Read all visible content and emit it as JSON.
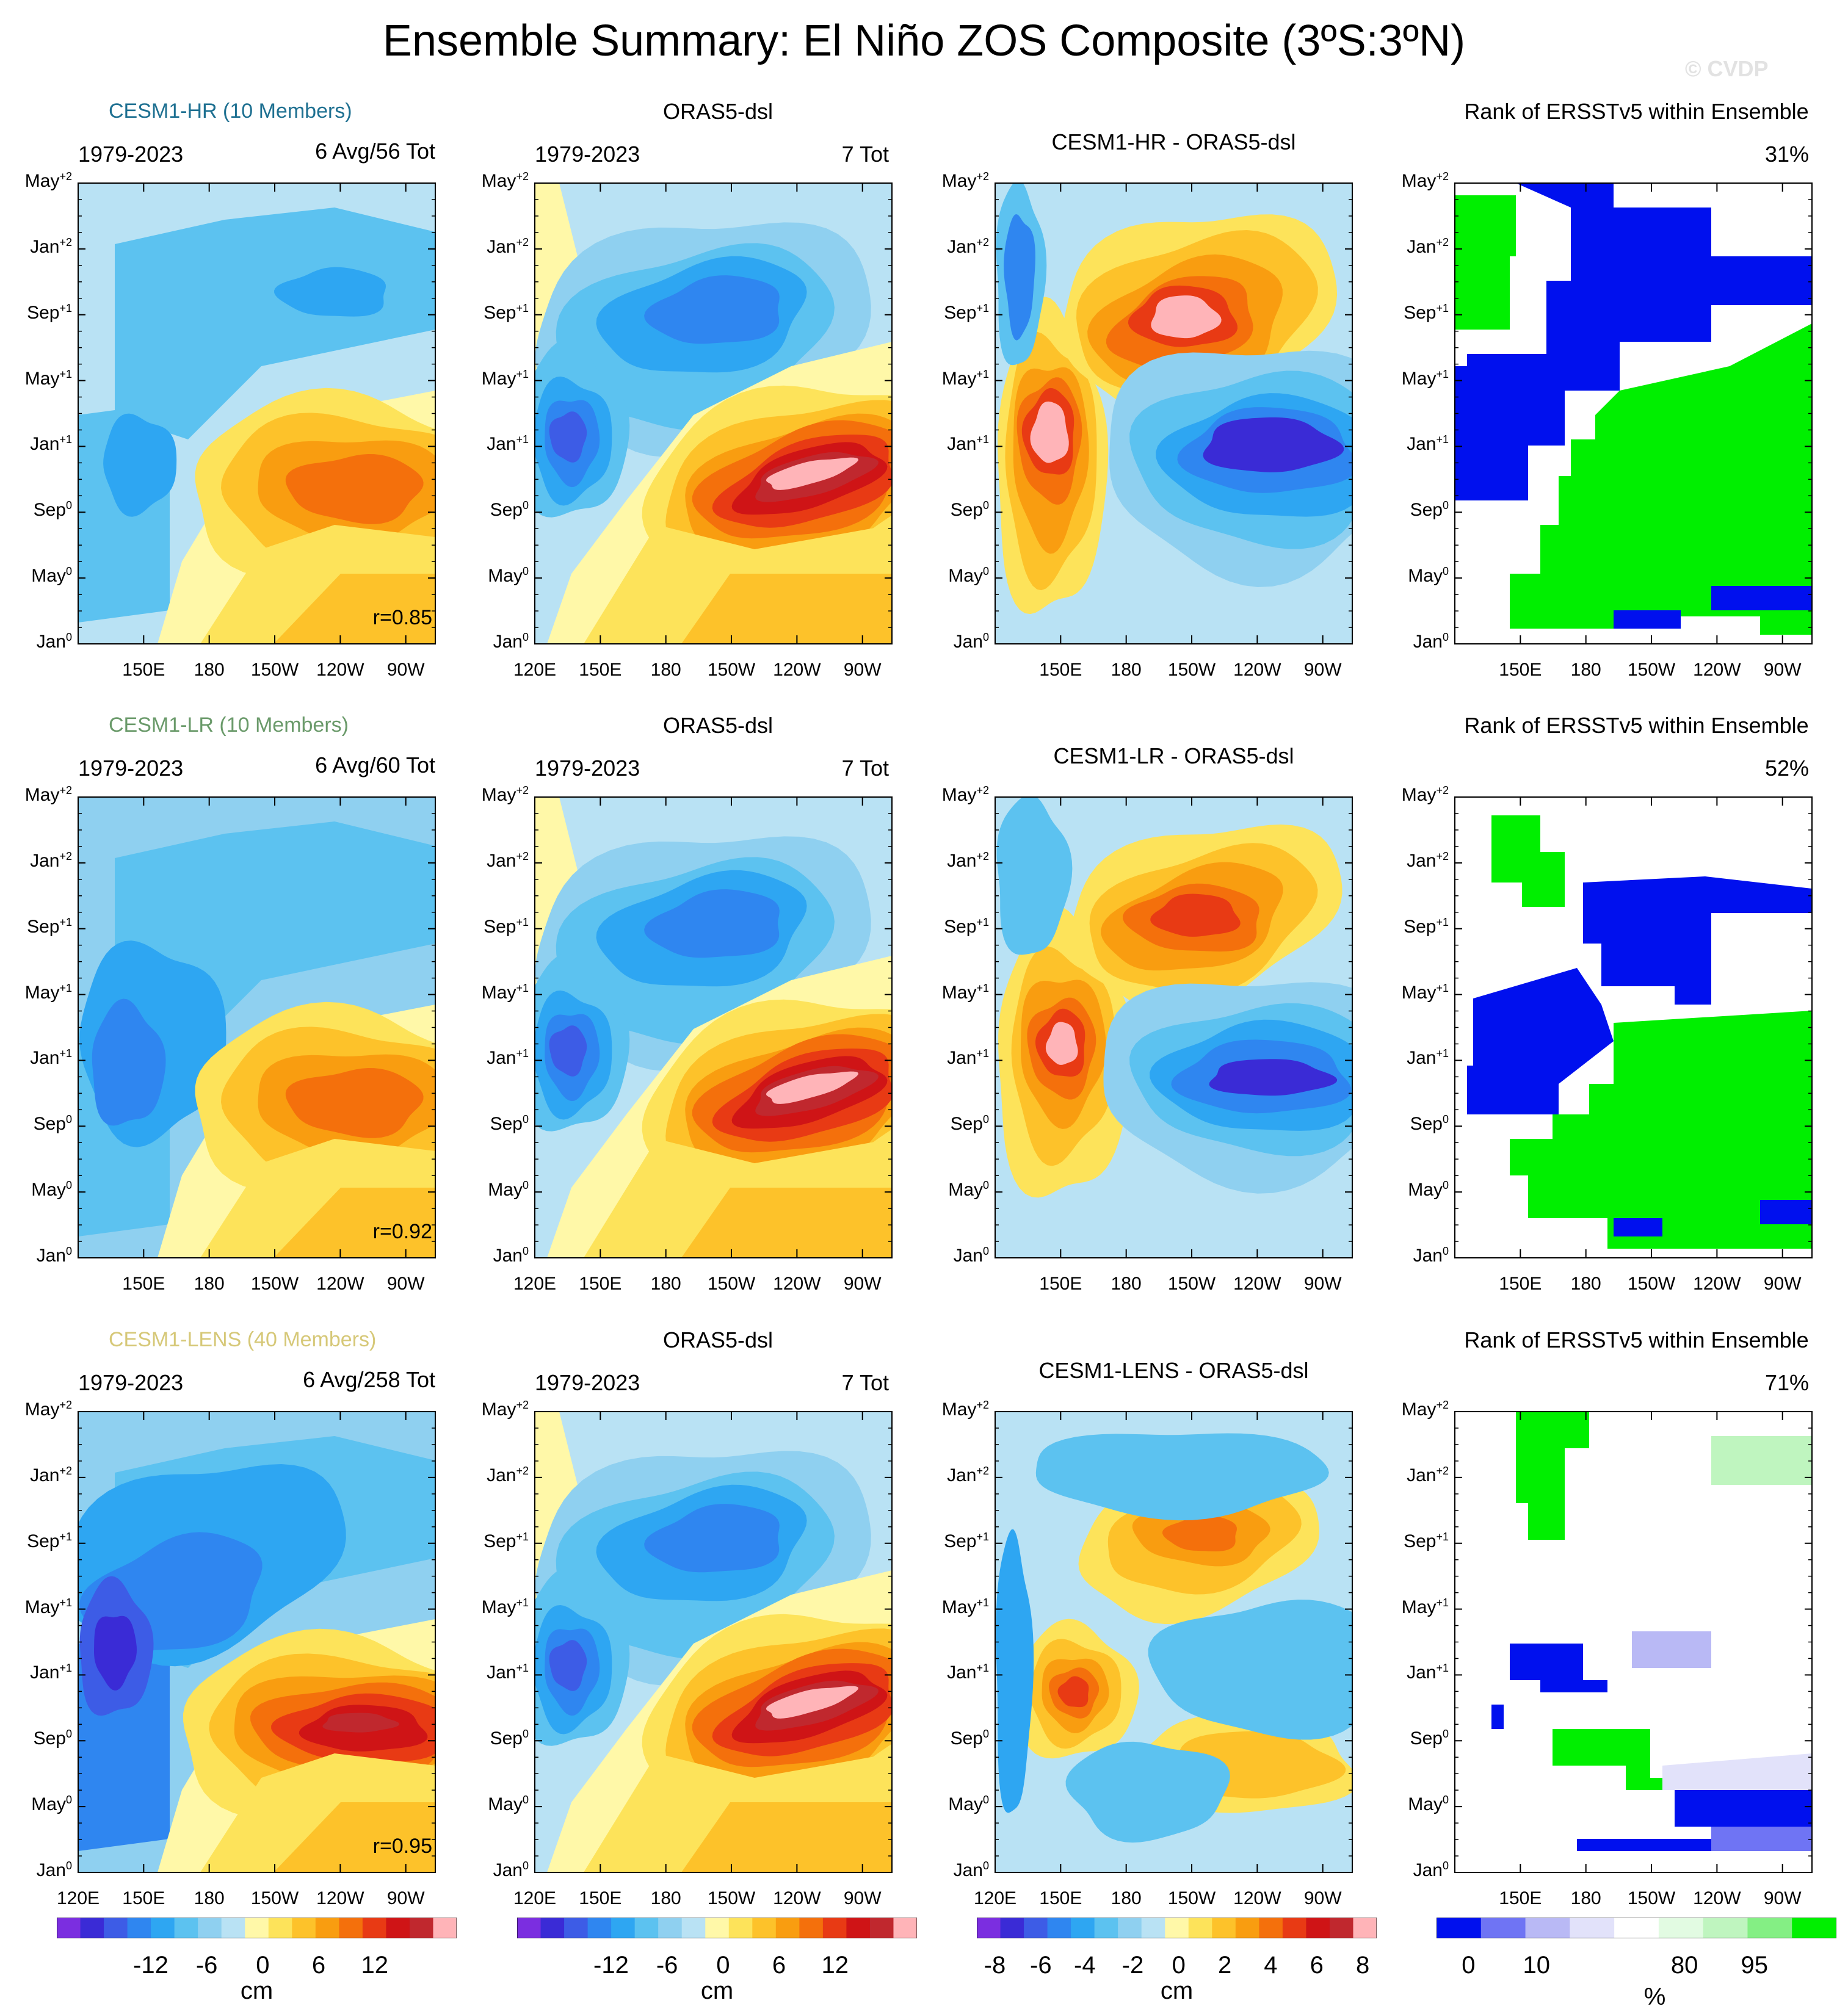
{
  "title": "Ensemble Summary: El Niño ZOS Composite (3ºS:3ºN)",
  "watermark": "© CVDP",
  "units": "cm",
  "rank_units": "%",
  "y_ticks": [
    "May+2",
    "Jan+2",
    "Sep+1",
    "May+1",
    "Jan+1",
    "Sep0",
    "May0",
    "Jan0"
  ],
  "x_ticks_full": [
    "120E",
    "150E",
    "180",
    "150W",
    "120W",
    "90W"
  ],
  "x_ticks_short": [
    "150E",
    "180",
    "150W",
    "120W",
    "90W"
  ],
  "rows": [
    {
      "model": {
        "title": "CESM1-HR (10 Members)",
        "title_color": "#1e7091",
        "years": "1979-2023",
        "avg": "6 Avg/56 Tot",
        "r": "r=0.85"
      },
      "obs": {
        "title": "ORAS5-dsl",
        "years": "1979-2023",
        "tot": "7 Tot"
      },
      "diff": {
        "title": "CESM1-HR - ORAS5-dsl"
      },
      "rank": {
        "title": "Rank of ERSSTv5 within Ensemble",
        "pct": "31%"
      }
    },
    {
      "model": {
        "title": "CESM1-LR (10 Members)",
        "title_color": "#6a9a6a",
        "years": "1979-2023",
        "avg": "6 Avg/60 Tot",
        "r": "r=0.92"
      },
      "obs": {
        "title": "ORAS5-dsl",
        "years": "1979-2023",
        "tot": "7 Tot"
      },
      "diff": {
        "title": "CESM1-LR - ORAS5-dsl"
      },
      "rank": {
        "title": "Rank of ERSSTv5 within Ensemble",
        "pct": "52%"
      }
    },
    {
      "model": {
        "title": "CESM1-LENS (40 Members)",
        "title_color": "#d6c878",
        "years": "1979-2023",
        "avg": "6 Avg/258 Tot",
        "r": "r=0.95"
      },
      "obs": {
        "title": "ORAS5-dsl",
        "years": "1979-2023",
        "tot": "7 Tot"
      },
      "diff": {
        "title": "CESM1-LENS - ORAS5-dsl"
      },
      "rank": {
        "title": "Rank of ERSSTv5 within Ensemble",
        "pct": "71%"
      }
    }
  ],
  "colorbars": [
    {
      "labels": [
        "-12",
        "-6",
        "0",
        "6",
        "12"
      ],
      "unit": "cm"
    },
    {
      "labels": [
        "-12",
        "-6",
        "0",
        "6",
        "12"
      ],
      "unit": "cm"
    },
    {
      "labels": [
        "-8",
        "-6",
        "-4",
        "-2",
        "0",
        "2",
        "4",
        "6",
        "8"
      ],
      "unit": "cm"
    },
    {
      "labels": [
        "0",
        "10",
        "80",
        "95"
      ],
      "unit": "%"
    }
  ],
  "colors": {
    "anom": [
      "#7b2ee0",
      "#3a2bd6",
      "#3d5ce6",
      "#2f86f0",
      "#2ea6f2",
      "#5cc2f0",
      "#8fd0f0",
      "#b9e2f4",
      "#fff8a8",
      "#fde35a",
      "#fdc22a",
      "#f99d10",
      "#f4700c",
      "#e83a14",
      "#cf1416",
      "#c0282e",
      "#ffb4b8"
    ],
    "rank": [
      "#0010ee",
      "#6f74f4",
      "#b9b9f5",
      "#e2e2fa",
      "#ffffff",
      "#e2fbe2",
      "#bff5bf",
      "#84ef84",
      "#00ef00"
    ]
  },
  "chart_data": [
    {
      "type": "heatmap",
      "description": "Hovmoller (longitude vs composite month) of El Niño ZOS composite anomalies, 3S-3N, per ensemble; anomaly levels span the color bar (cm)",
      "x_axis": {
        "ticks": [
          "120E",
          "150E",
          "180",
          "150W",
          "120W",
          "90W"
        ],
        "range_deg_E": [
          120,
          280
        ]
      },
      "y_axis": {
        "ticks": [
          "Jan0",
          "May0",
          "Sep0",
          "Jan+1",
          "May+1",
          "Sep+1",
          "Jan+2",
          "May+2"
        ]
      },
      "panels": [
        {
          "row": 1,
          "name": "CESM1-HR (10 Members)",
          "period": "1979-2023",
          "count": "6 Avg/56 Tot",
          "pattern_corr": 0.85,
          "peak_anomaly_cm": 12,
          "peak_location": "120W, Oct0-Dec0"
        },
        {
          "row": 1,
          "name": "ORAS5-dsl",
          "period": "1979-2023",
          "count": "7 Tot",
          "peak_anomaly_cm": 16,
          "peak_location": "125W, Nov0-Dec0",
          "min_anomaly_cm": -12,
          "min_location": "140E, Dec0-Jan+1"
        },
        {
          "row": 1,
          "name": "CESM1-HR - ORAS5-dsl",
          "min_anomaly_cm": -8,
          "max_anomaly_cm": 8
        },
        {
          "row": 2,
          "name": "CESM1-LR (10 Members)",
          "period": "1979-2023",
          "count": "6 Avg/60 Tot",
          "pattern_corr": 0.92,
          "peak_anomaly_cm": 12
        },
        {
          "row": 2,
          "name": "ORAS5-dsl",
          "period": "1979-2023",
          "count": "7 Tot",
          "peak_anomaly_cm": 16
        },
        {
          "row": 2,
          "name": "CESM1-LR - ORAS5-dsl",
          "min_anomaly_cm": -8,
          "max_anomaly_cm": 8
        },
        {
          "row": 3,
          "name": "CESM1-LENS (40 Members)",
          "period": "1979-2023",
          "count": "6 Avg/258 Tot",
          "pattern_corr": 0.95,
          "peak_anomaly_cm": 14
        },
        {
          "row": 3,
          "name": "ORAS5-dsl",
          "period": "1979-2023",
          "count": "7 Tot",
          "peak_anomaly_cm": 16
        },
        {
          "row": 3,
          "name": "CESM1-LENS - ORAS5-dsl",
          "min_anomaly_cm": -6,
          "max_anomaly_cm": 6
        }
      ],
      "colorbar_cm": {
        "levels": [
          -16,
          -14,
          -12,
          -10,
          -8,
          -6,
          -4,
          -2,
          0,
          2,
          4,
          6,
          8,
          10,
          12,
          14,
          16
        ],
        "labels": [
          -12,
          -6,
          0,
          6,
          12
        ]
      },
      "colorbar_diff_cm": {
        "levels": [
          -8,
          -7,
          -6,
          -5,
          -4,
          -3,
          -2,
          -1,
          0,
          1,
          2,
          3,
          4,
          5,
          6,
          7,
          8
        ],
        "labels": [
          -8,
          -6,
          -4,
          -2,
          0,
          2,
          4,
          6,
          8
        ]
      }
    },
    {
      "type": "heatmap",
      "description": "Rank of ERSSTv5 within ensemble (percentile)",
      "ranks_pct": [
        31,
        52,
        71
      ],
      "colorbar_pct": {
        "labels": [
          0,
          10,
          80,
          95
        ]
      }
    }
  ]
}
